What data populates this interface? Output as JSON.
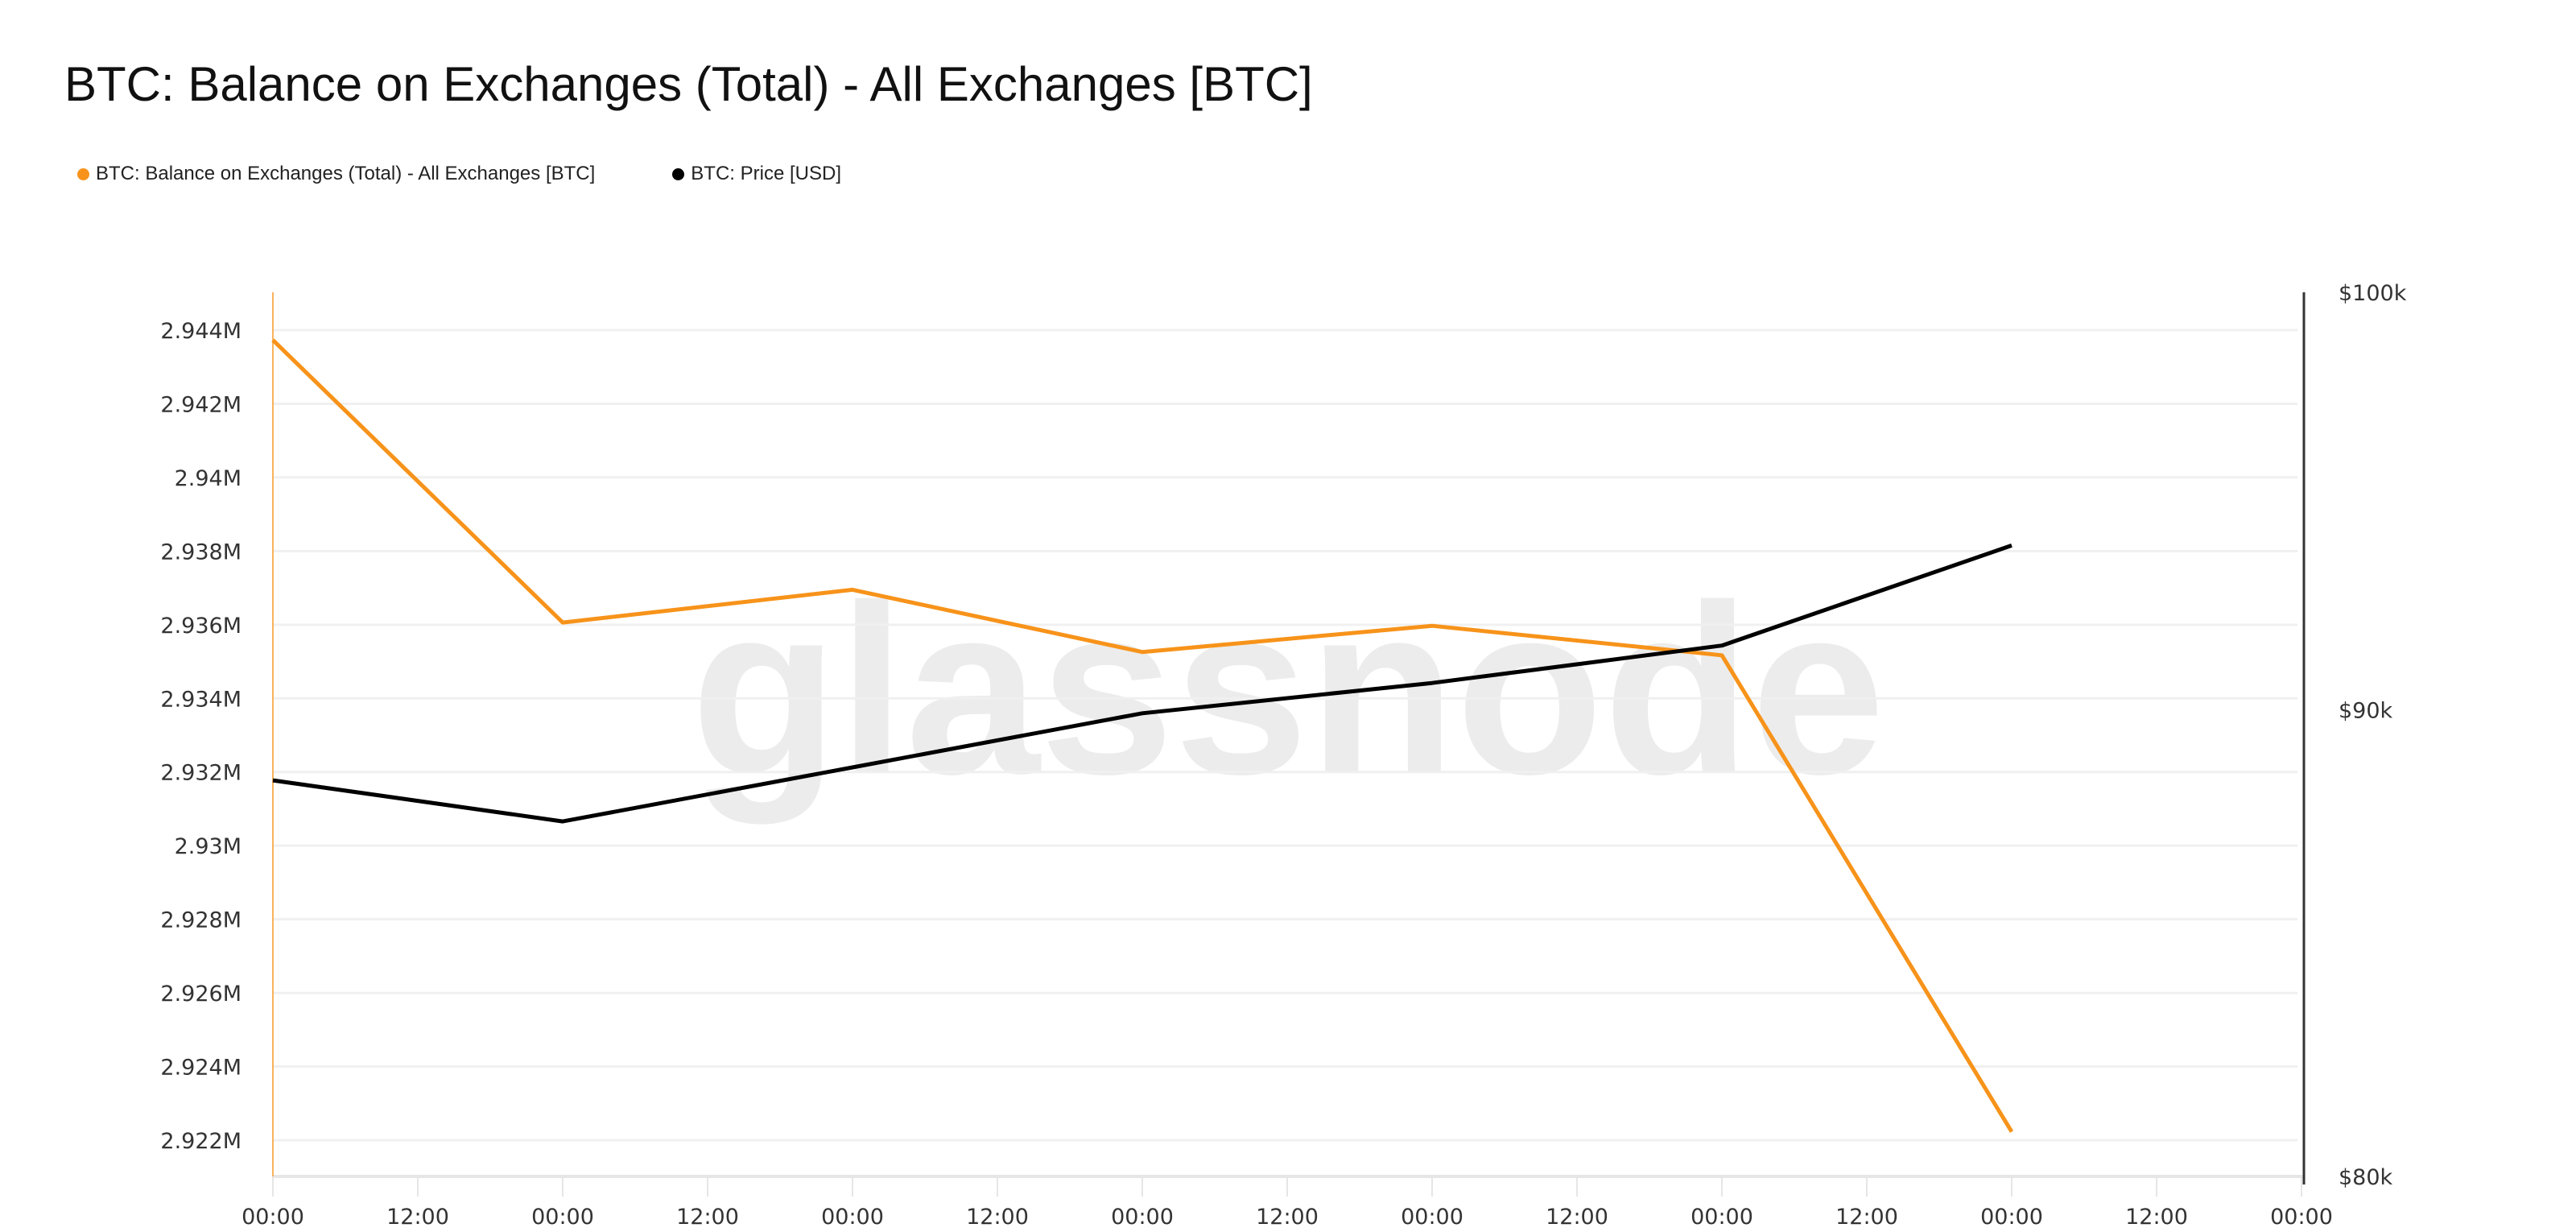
{
  "title": "BTC: Balance on Exchanges (Total) - All Exchanges [BTC]",
  "watermark": "glassnode",
  "chart_data": {
    "type": "line",
    "title": "BTC: Balance on Exchanges (Total) - All Exchanges [BTC]",
    "legend_placement": "top-left",
    "grid": true,
    "x_tick_labels": [
      "00:00",
      "12:00",
      "00:00",
      "12:00",
      "00:00",
      "12:00",
      "00:00",
      "12:00",
      "00:00",
      "12:00",
      "00:00",
      "12:00",
      "00:00",
      "12:00",
      "00:00"
    ],
    "left_axis": {
      "ylim": [
        2.921,
        2.9455
      ],
      "tick_values": [
        2.944,
        2.942,
        2.94,
        2.938,
        2.936,
        2.934,
        2.932,
        2.93,
        2.928,
        2.926,
        2.924,
        2.922
      ],
      "tick_labels": [
        "2.944M",
        "2.942M",
        "2.94M",
        "2.938M",
        "2.936M",
        "2.934M",
        "2.932M",
        "2.93M",
        "2.928M",
        "2.926M",
        "2.924M",
        "2.922M"
      ]
    },
    "right_axis": {
      "scale": "log",
      "ylim": [
        80000,
        100000
      ],
      "tick_values": [
        100000,
        90000,
        80000
      ],
      "tick_labels": [
        "$100k",
        "$90k",
        "$80k"
      ]
    },
    "series": [
      {
        "name": "BTC: Balance on Exchanges (Total) - All Exchanges [BTC]",
        "axis": "left",
        "color": "#f7931a",
        "x_tick_index": [
          0,
          2,
          4,
          6,
          8,
          10,
          12
        ],
        "values": [
          2.94373,
          2.93606,
          2.93695,
          2.93526,
          2.93597,
          2.93517,
          2.92223
        ]
      },
      {
        "name": "BTC: Price [USD]",
        "axis": "right",
        "color": "#000000",
        "x_tick_index": [
          0,
          2,
          4,
          6,
          8,
          10,
          12
        ],
        "values": [
          88410,
          87500,
          88700,
          89920,
          90610,
          91470,
          93810
        ]
      }
    ]
  }
}
